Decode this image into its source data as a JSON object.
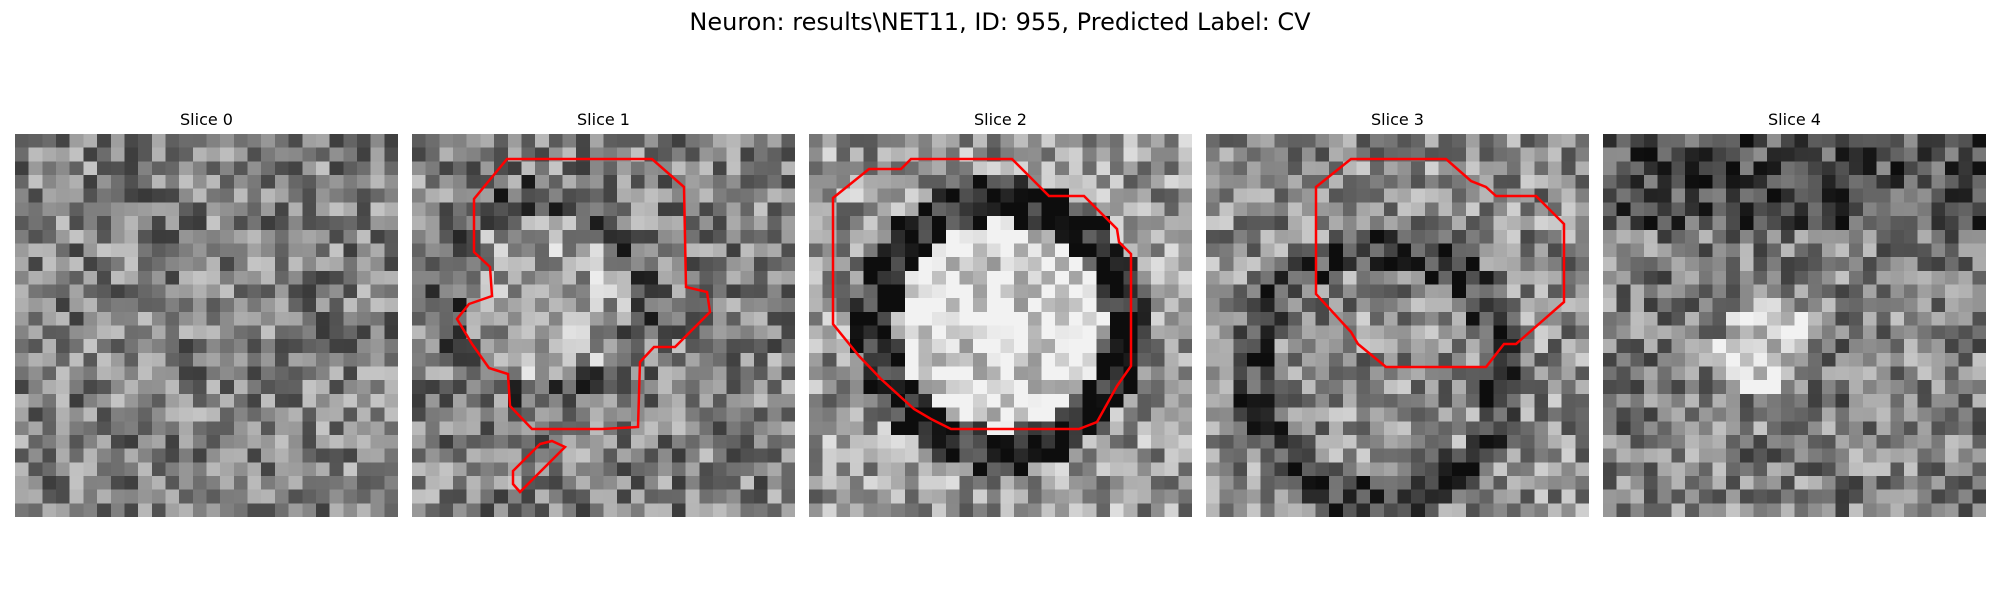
{
  "figure": {
    "title": "Neuron: results\\NET11, ID: 955, Predicted Label: CV"
  },
  "colors": {
    "contour": "#ff0000",
    "colormap": "gray"
  },
  "panels": [
    {
      "title": "Slice 0"
    },
    {
      "title": "Slice 1"
    },
    {
      "title": "Slice 2"
    },
    {
      "title": "Slice 3"
    },
    {
      "title": "Slice 4"
    }
  ]
}
